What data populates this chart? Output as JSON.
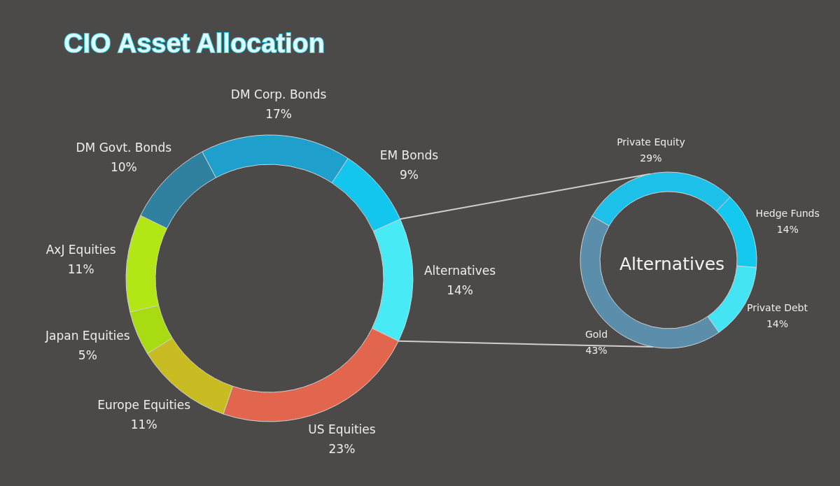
{
  "chart_data": [
    {
      "type": "donut",
      "title": "CIO Asset Allocation",
      "categories": [
        "DM Corp. Bonds",
        "EM Bonds",
        "Alternatives",
        "US Equities",
        "Europe Equities",
        "Japan Equities",
        "AxJ Equities",
        "DM Govt. Bonds"
      ],
      "values": [
        17,
        9,
        14,
        23,
        11,
        5,
        11,
        10
      ],
      "value_labels": [
        "17%",
        "9%",
        "14%",
        "23%",
        "11%",
        "5%",
        "11%",
        "10%"
      ],
      "colors": [
        "#1fa0cc",
        "#12c6ee",
        "#48eaf6",
        "#e2654e",
        "#c9bb22",
        "#a9db12",
        "#b2e614",
        "#3081a0"
      ]
    },
    {
      "type": "donut",
      "title": "Alternatives",
      "categories": [
        "Private Equity",
        "Hedge Funds",
        "Private Debt",
        "Gold"
      ],
      "values": [
        29,
        14,
        14,
        43
      ],
      "value_labels": [
        "29%",
        "14%",
        "14%",
        "43%"
      ],
      "colors": [
        "#1cc0e8",
        "#14c8ee",
        "#44e4f4",
        "#5b8eaa"
      ]
    }
  ]
}
